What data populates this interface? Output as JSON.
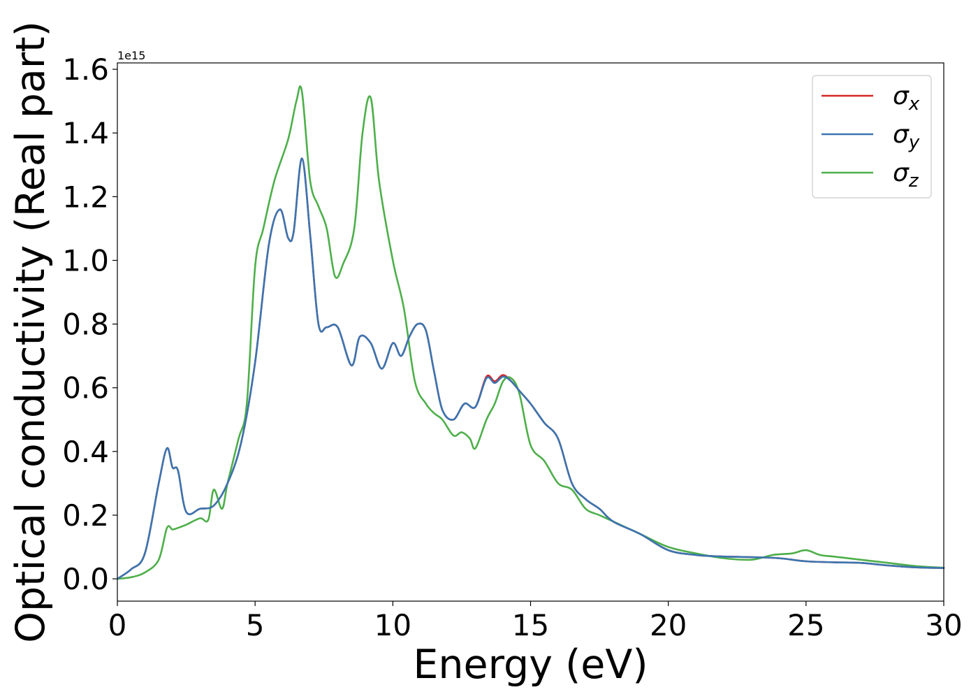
{
  "chart_data": {
    "type": "line",
    "xlabel": "Energy (eV)",
    "ylabel": "Optical conductivity (Real part)",
    "y_offset_label": "1e15",
    "xlim": [
      0,
      30
    ],
    "ylim": [
      -0.07,
      1.62
    ],
    "x_ticks": [
      "0",
      "5",
      "10",
      "15",
      "20",
      "25",
      "30"
    ],
    "y_ticks": [
      "0.0",
      "0.2",
      "0.4",
      "0.6",
      "0.8",
      "1.0",
      "1.2",
      "1.4",
      "1.6"
    ],
    "grid": false,
    "legend_position": "top-right",
    "series": [
      {
        "name": "σx",
        "symbol": "σ",
        "subscript": "x",
        "color": "#d62728",
        "x": [
          0,
          0.5,
          1,
          1.5,
          1.8,
          2,
          2.2,
          2.5,
          3,
          3.5,
          4,
          4.5,
          5,
          5.5,
          5.9,
          6.2,
          6.4,
          6.7,
          7,
          7.3,
          7.6,
          8,
          8.5,
          8.8,
          9.2,
          9.6,
          10,
          10.3,
          10.6,
          10.9,
          11.2,
          11.5,
          11.8,
          12.2,
          12.6,
          13,
          13.4,
          13.7,
          14,
          14.3,
          14.6,
          15,
          15.5,
          16,
          16.5,
          17,
          17.5,
          18,
          19,
          20,
          21,
          22,
          23,
          24,
          25,
          26,
          27,
          28,
          29,
          30
        ],
        "y": [
          0,
          0.03,
          0.08,
          0.3,
          0.41,
          0.35,
          0.34,
          0.21,
          0.22,
          0.23,
          0.3,
          0.43,
          0.68,
          1.05,
          1.16,
          1.07,
          1.09,
          1.32,
          1.08,
          0.8,
          0.79,
          0.79,
          0.67,
          0.76,
          0.74,
          0.66,
          0.74,
          0.7,
          0.76,
          0.8,
          0.78,
          0.65,
          0.53,
          0.5,
          0.55,
          0.54,
          0.635,
          0.62,
          0.64,
          0.62,
          0.59,
          0.55,
          0.49,
          0.44,
          0.3,
          0.25,
          0.22,
          0.18,
          0.14,
          0.09,
          0.075,
          0.07,
          0.068,
          0.065,
          0.055,
          0.052,
          0.05,
          0.042,
          0.036,
          0.034
        ]
      },
      {
        "name": "σy",
        "symbol": "σ",
        "subscript": "y",
        "color": "#3a75b0",
        "x": [
          0,
          0.5,
          1,
          1.5,
          1.8,
          2,
          2.2,
          2.5,
          3,
          3.5,
          4,
          4.5,
          5,
          5.5,
          5.9,
          6.2,
          6.4,
          6.7,
          7,
          7.3,
          7.6,
          8,
          8.5,
          8.8,
          9.2,
          9.6,
          10,
          10.3,
          10.6,
          10.9,
          11.2,
          11.5,
          11.8,
          12.2,
          12.6,
          13,
          13.4,
          13.7,
          14,
          14.3,
          14.6,
          15,
          15.5,
          16,
          16.5,
          17,
          17.5,
          18,
          19,
          20,
          21,
          22,
          23,
          24,
          25,
          26,
          27,
          28,
          29,
          30
        ],
        "y": [
          0,
          0.03,
          0.08,
          0.3,
          0.41,
          0.35,
          0.34,
          0.21,
          0.22,
          0.23,
          0.3,
          0.43,
          0.68,
          1.05,
          1.16,
          1.07,
          1.09,
          1.32,
          1.08,
          0.8,
          0.79,
          0.79,
          0.67,
          0.76,
          0.74,
          0.66,
          0.74,
          0.7,
          0.76,
          0.8,
          0.78,
          0.65,
          0.53,
          0.5,
          0.55,
          0.54,
          0.63,
          0.615,
          0.635,
          0.62,
          0.59,
          0.55,
          0.49,
          0.44,
          0.3,
          0.25,
          0.22,
          0.18,
          0.14,
          0.09,
          0.075,
          0.07,
          0.068,
          0.065,
          0.055,
          0.052,
          0.05,
          0.042,
          0.036,
          0.034
        ]
      },
      {
        "name": "σz",
        "symbol": "σ",
        "subscript": "z",
        "color": "#4daf4a",
        "x": [
          0,
          0.5,
          1,
          1.5,
          1.8,
          2,
          2.2,
          2.5,
          3,
          3.3,
          3.5,
          3.8,
          4,
          4.4,
          4.7,
          5,
          5.3,
          5.7,
          6.2,
          6.5,
          6.7,
          7,
          7.3,
          7.6,
          7.9,
          8.2,
          8.6,
          8.9,
          9.2,
          9.5,
          10,
          10.4,
          10.8,
          11.2,
          11.5,
          11.8,
          12.2,
          12.5,
          12.8,
          13,
          13.4,
          13.7,
          14,
          14.3,
          14.6,
          15,
          15.5,
          16,
          16.5,
          17,
          17.5,
          18,
          19,
          20,
          21,
          22,
          23,
          23.8,
          24.5,
          25,
          25.5,
          26,
          27,
          28,
          29,
          30
        ],
        "y": [
          0,
          0.005,
          0.02,
          0.06,
          0.16,
          0.155,
          0.16,
          0.17,
          0.19,
          0.185,
          0.28,
          0.22,
          0.3,
          0.44,
          0.55,
          0.98,
          1.1,
          1.25,
          1.38,
          1.5,
          1.53,
          1.25,
          1.17,
          1.1,
          0.95,
          0.99,
          1.1,
          1.4,
          1.51,
          1.25,
          1.0,
          0.85,
          0.62,
          0.55,
          0.52,
          0.5,
          0.45,
          0.46,
          0.44,
          0.41,
          0.5,
          0.55,
          0.62,
          0.63,
          0.58,
          0.42,
          0.37,
          0.3,
          0.28,
          0.22,
          0.2,
          0.18,
          0.14,
          0.1,
          0.08,
          0.065,
          0.06,
          0.075,
          0.08,
          0.09,
          0.075,
          0.07,
          0.06,
          0.05,
          0.04,
          0.035
        ]
      }
    ]
  }
}
